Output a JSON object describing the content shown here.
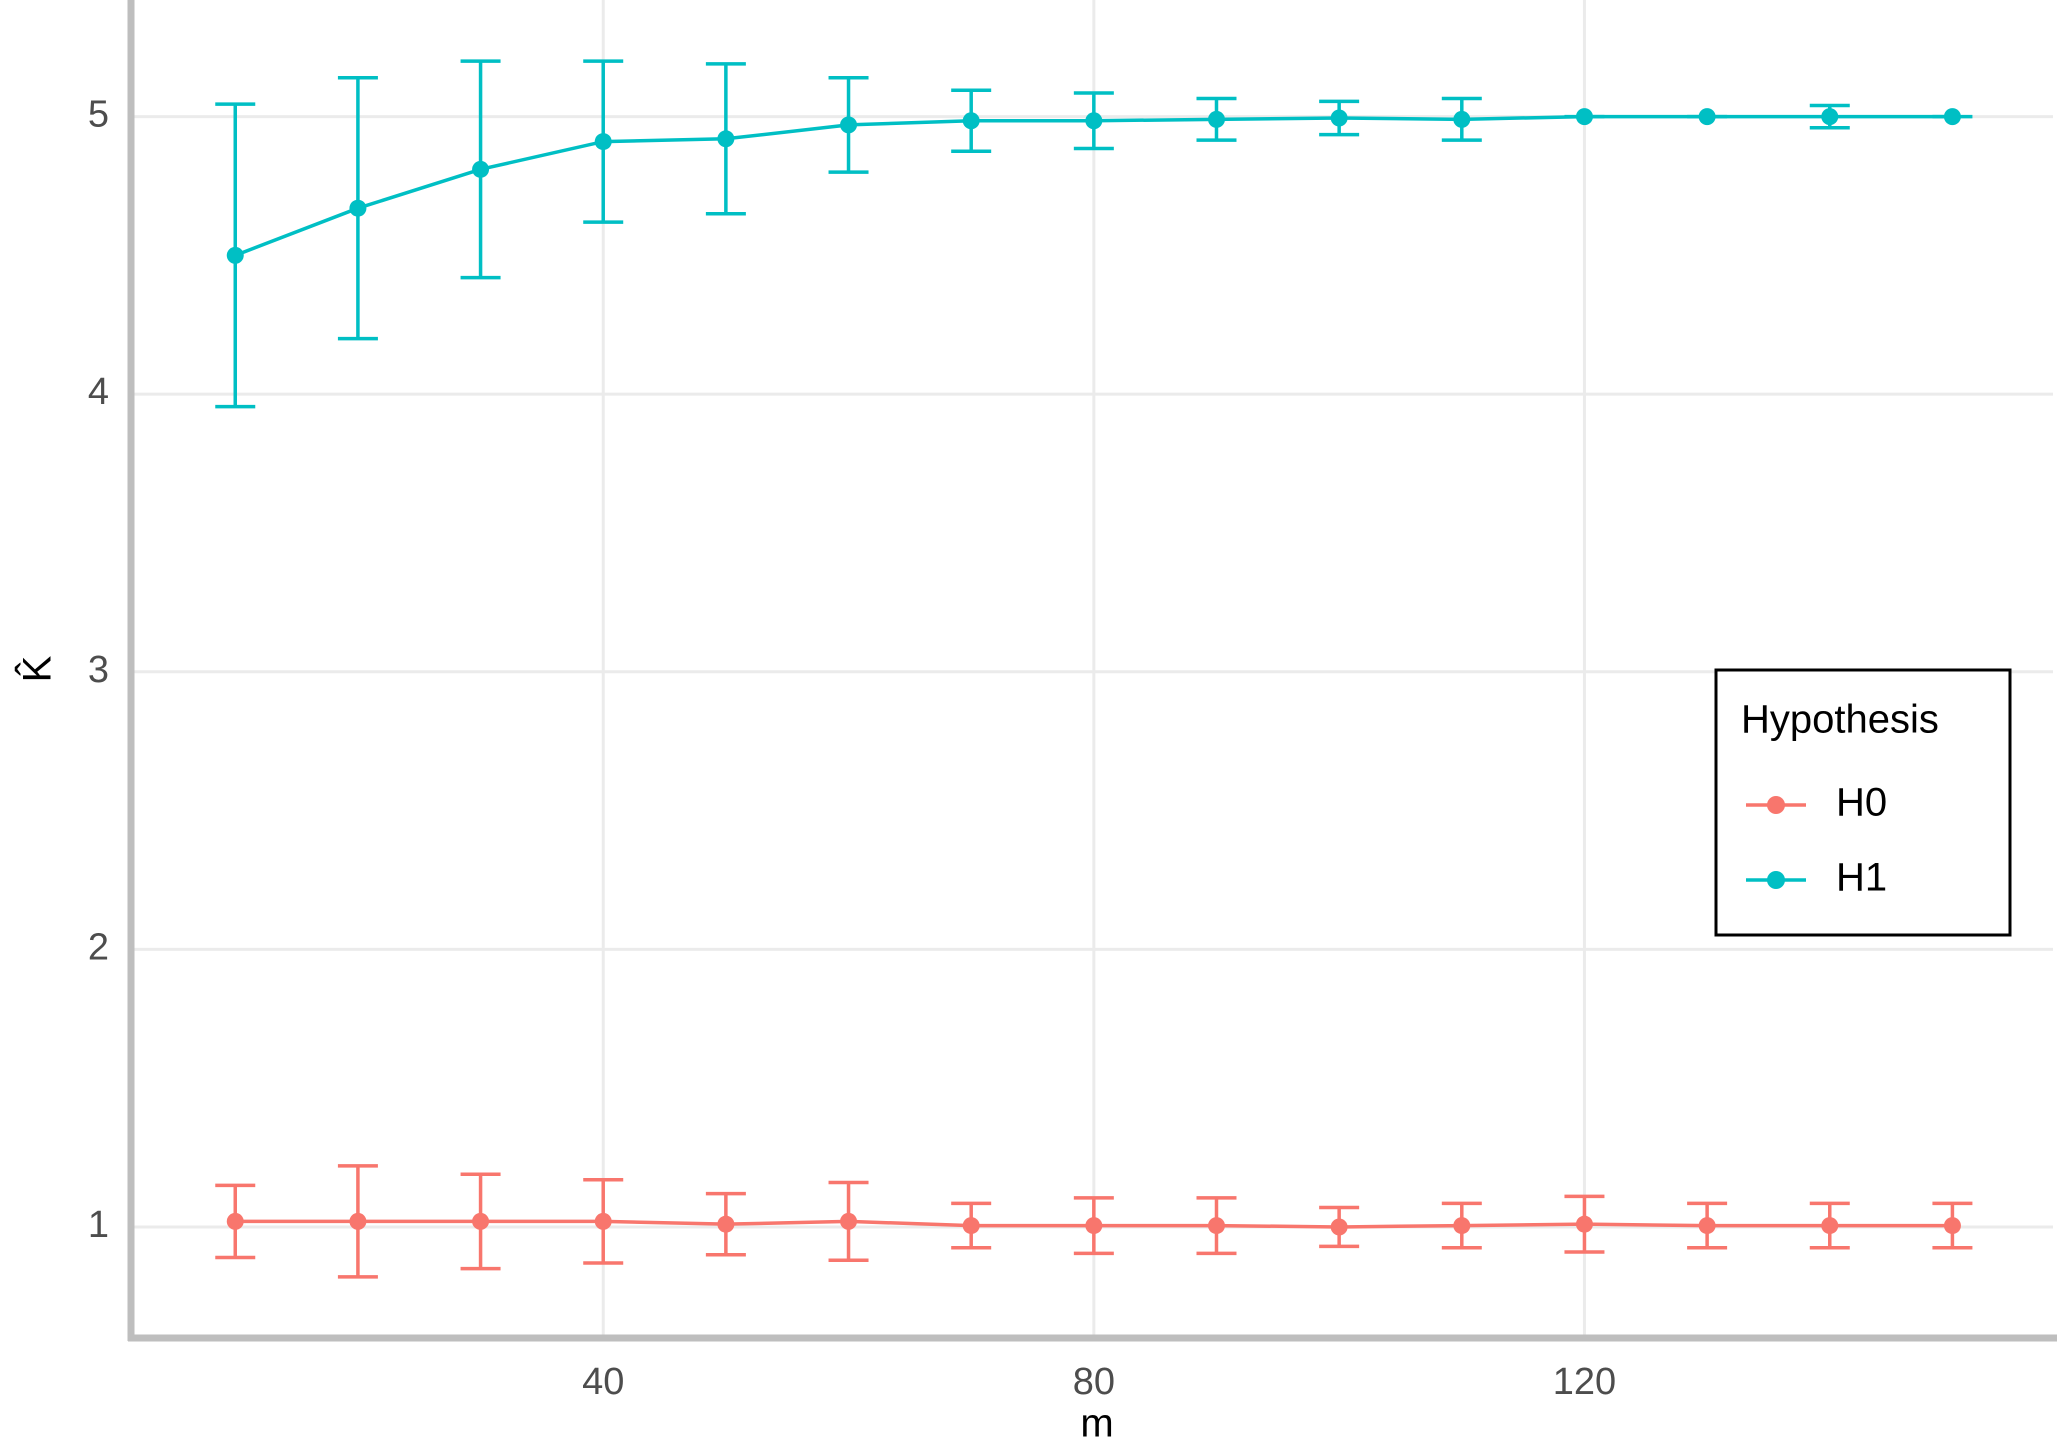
{
  "chart_data": {
    "type": "line",
    "x_label": "m",
    "y_label": "K̂",
    "x": [
      10,
      20,
      30,
      40,
      50,
      60,
      70,
      80,
      90,
      100,
      110,
      120,
      130,
      140,
      150
    ],
    "series": [
      {
        "name": "H0",
        "color": "#f8766d",
        "values": [
          1.02,
          1.02,
          1.02,
          1.02,
          1.01,
          1.02,
          1.005,
          1.005,
          1.005,
          1.0,
          1.005,
          1.01,
          1.005,
          1.005,
          1.005
        ],
        "errors": [
          0.13,
          0.2,
          0.17,
          0.15,
          0.11,
          0.14,
          0.08,
          0.1,
          0.1,
          0.07,
          0.08,
          0.1,
          0.08,
          0.08,
          0.08
        ]
      },
      {
        "name": "H1",
        "color": "#00bfc4",
        "values": [
          4.5,
          4.67,
          4.81,
          4.91,
          4.92,
          4.97,
          4.985,
          4.985,
          4.99,
          4.995,
          4.99,
          5.0,
          5.0,
          5.0,
          5.0
        ],
        "errors": [
          0.545,
          0.47,
          0.39,
          0.29,
          0.27,
          0.17,
          0.11,
          0.1,
          0.075,
          0.06,
          0.075,
          0,
          0,
          0.04,
          0
        ]
      }
    ],
    "legend_title": "Hypothesis",
    "legend_position": "right",
    "xlim": [
      1.5,
      158.2
    ],
    "xticks": [
      40,
      80,
      120
    ],
    "ylim": [
      0.6,
      5.42
    ],
    "yticks": [
      1,
      2,
      3,
      4,
      5
    ],
    "grid": true
  }
}
